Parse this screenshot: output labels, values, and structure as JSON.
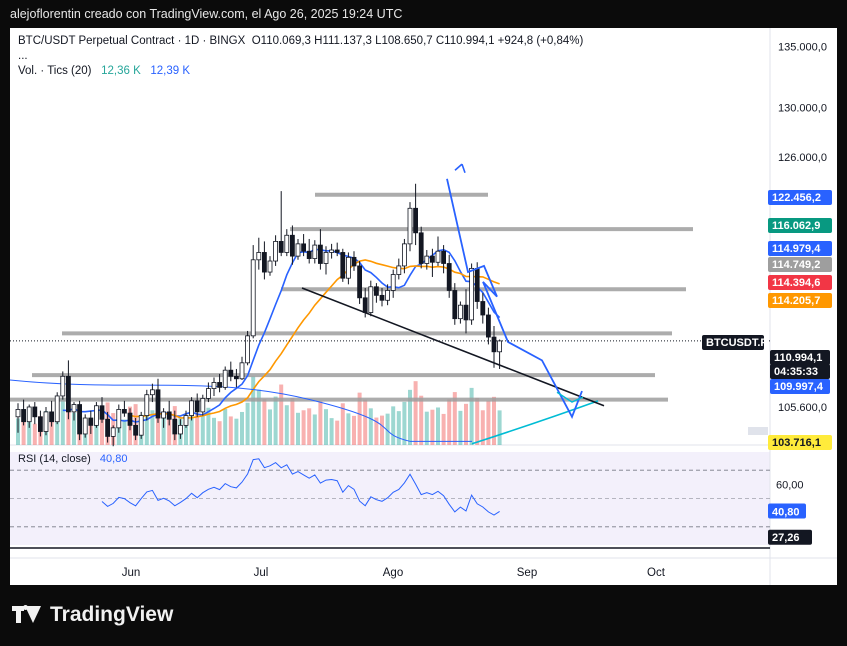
{
  "header": {
    "attribution": "alejoflorentin creado con TradingView.com, el Ago 26, 2025 19:24 UTC"
  },
  "legend": {
    "symbol": "BTC/USDT Perpetual Contract · 1D · BINGX",
    "ohlc": "O110.069,3  H111.137,3  L108.650,7  C110.994,1  +924,8 (+0,84%)",
    "more": "...",
    "vol_prefix": "Vol. · Tics (20)",
    "vol_1": "12,36 K",
    "vol_2": "12,39 K"
  },
  "rsi_legend": {
    "prefix": "RSI (14, close)",
    "value": "40,80"
  },
  "brand": {
    "name": "TradingView"
  },
  "colors": {
    "up": "#26a69a",
    "down": "#ef5350",
    "ma_fast": "#2962ff",
    "ma_slow": "#ff9800",
    "ma_long": "#00bcd4",
    "rsi": "#2962ff",
    "levels": "#9e9e9e"
  },
  "chart_data": {
    "type": "candlestick",
    "x_tick_labels": [
      "Jun",
      "Jul",
      "Ago",
      "Sep",
      "Oct"
    ],
    "y_tick_labels": [
      "135.000,0",
      "130.000,0",
      "126.000,0",
      "105.600,0"
    ],
    "price_badges": [
      {
        "text": "122.456,2",
        "color": "#2962ff",
        "fg": "#ffffff"
      },
      {
        "text": "116.062,9",
        "color": "#089981",
        "fg": "#ffffff"
      },
      {
        "text": "114.979,4",
        "color": "#2962ff",
        "fg": "#ffffff"
      },
      {
        "text": "114.749,2",
        "color": "#9e9e9e",
        "fg": "#ffffff"
      },
      {
        "text": "114.394,6",
        "color": "#f23645",
        "fg": "#ffffff"
      },
      {
        "text": "114.205,7",
        "color": "#ff9800",
        "fg": "#ffffff"
      },
      {
        "text": "BTCUSDT.P",
        "color": "#131722",
        "fg": "#ffffff"
      },
      {
        "text": "110.994,1",
        "color": "#131722",
        "fg": "#ffffff"
      },
      {
        "text": "04:35:33",
        "color": "#131722",
        "fg": "#ffffff"
      },
      {
        "text": "109.997,4",
        "color": "#2962ff",
        "fg": "#ffffff"
      },
      {
        "text": "103.716,1",
        "color": "#ffeb3b",
        "fg": "#131722"
      }
    ],
    "rsi": {
      "current": "40,80",
      "y_tick_labels": [
        "60,00",
        "27,26"
      ],
      "current_badge_color": "#2962ff"
    },
    "candles": [
      [
        104800,
        105900,
        103500,
        105400
      ],
      [
        105400,
        106200,
        104100,
        104400
      ],
      [
        104400,
        105800,
        103900,
        105600
      ],
      [
        105600,
        106000,
        104200,
        104800
      ],
      [
        104800,
        105300,
        103200,
        103600
      ],
      [
        103600,
        105600,
        103300,
        105200
      ],
      [
        105200,
        106100,
        104000,
        104400
      ],
      [
        104400,
        106800,
        104200,
        106500
      ],
      [
        106500,
        108500,
        106200,
        108100
      ],
      [
        108100,
        109400,
        104600,
        105200
      ],
      [
        105200,
        106000,
        104500,
        105800
      ],
      [
        105800,
        106100,
        102900,
        103400
      ],
      [
        103400,
        105000,
        103100,
        104700
      ],
      [
        104700,
        105300,
        103400,
        104100
      ],
      [
        104100,
        106000,
        103900,
        105700
      ],
      [
        105700,
        106400,
        104300,
        104600
      ],
      [
        104600,
        105200,
        102700,
        103200
      ],
      [
        103200,
        104100,
        102400,
        103900
      ],
      [
        103900,
        105800,
        103500,
        105400
      ],
      [
        105400,
        106100,
        104800,
        105100
      ],
      [
        105100,
        105500,
        103700,
        104100
      ],
      [
        104100,
        104700,
        102900,
        103300
      ],
      [
        103300,
        105200,
        103000,
        104900
      ],
      [
        104900,
        107000,
        104500,
        106600
      ],
      [
        106600,
        107500,
        106000,
        107000
      ],
      [
        107000,
        107900,
        104300,
        104700
      ],
      [
        104700,
        105500,
        103900,
        105200
      ],
      [
        105200,
        106100,
        104100,
        104600
      ],
      [
        104600,
        105300,
        102900,
        103400
      ],
      [
        103400,
        104600,
        103000,
        104100
      ],
      [
        104100,
        105300,
        103900,
        104900
      ],
      [
        104900,
        106400,
        104500,
        106100
      ],
      [
        106100,
        106700,
        104800,
        105200
      ],
      [
        105200,
        106600,
        104900,
        106300
      ],
      [
        106300,
        107600,
        106000,
        107100
      ],
      [
        107100,
        108000,
        106500,
        107600
      ],
      [
        107600,
        108300,
        106800,
        107200
      ],
      [
        107200,
        108900,
        107000,
        108600
      ],
      [
        108600,
        109300,
        107700,
        108100
      ],
      [
        108100,
        108700,
        107200,
        107900
      ],
      [
        107900,
        109700,
        107800,
        109200
      ],
      [
        109200,
        111800,
        109000,
        111400
      ],
      [
        111400,
        118800,
        111200,
        117600
      ],
      [
        117600,
        119400,
        116800,
        118200
      ],
      [
        118200,
        119100,
        116000,
        116600
      ],
      [
        116600,
        117900,
        116300,
        117500
      ],
      [
        117500,
        119600,
        117100,
        119100
      ],
      [
        119100,
        123200,
        117900,
        118200
      ],
      [
        118200,
        120100,
        117900,
        119600
      ],
      [
        119600,
        120400,
        117200,
        117900
      ],
      [
        117900,
        119300,
        117600,
        118900
      ],
      [
        118900,
        119700,
        117900,
        118300
      ],
      [
        118300,
        119300,
        117300,
        117700
      ],
      [
        117700,
        119200,
        117300,
        118800
      ],
      [
        118800,
        120100,
        116800,
        117300
      ],
      [
        117300,
        118700,
        116400,
        118200
      ],
      [
        118200,
        118900,
        117700,
        118400
      ],
      [
        118400,
        119000,
        117900,
        118200
      ],
      [
        118200,
        118500,
        115800,
        116100
      ],
      [
        116100,
        118200,
        115600,
        117800
      ],
      [
        117800,
        118300,
        116700,
        117100
      ],
      [
        117100,
        117500,
        114000,
        114500
      ],
      [
        114500,
        115300,
        112900,
        113300
      ],
      [
        113300,
        115900,
        113000,
        115400
      ],
      [
        115400,
        115700,
        114100,
        114700
      ],
      [
        114700,
        115300,
        113800,
        114300
      ],
      [
        114300,
        115600,
        113900,
        115100
      ],
      [
        115100,
        116800,
        114500,
        116400
      ],
      [
        116400,
        117700,
        116000,
        117100
      ],
      [
        117100,
        119300,
        116500,
        118900
      ],
      [
        118900,
        122300,
        118300,
        121800
      ],
      [
        121800,
        123800,
        118800,
        119800
      ],
      [
        119800,
        120300,
        116900,
        117300
      ],
      [
        117300,
        118400,
        116800,
        117900
      ],
      [
        117900,
        118500,
        116200,
        117400
      ],
      [
        117400,
        119500,
        117100,
        118300
      ],
      [
        118300,
        118800,
        116500,
        117300
      ],
      [
        117300,
        118000,
        114500,
        115100
      ],
      [
        115100,
        115700,
        112300,
        112800
      ],
      [
        112800,
        114200,
        112400,
        113900
      ],
      [
        113900,
        115200,
        111600,
        112700
      ],
      [
        112700,
        117300,
        112300,
        116900
      ],
      [
        116900,
        117400,
        113600,
        114200
      ],
      [
        114200,
        114900,
        112400,
        113100
      ],
      [
        113100,
        113700,
        110700,
        111300
      ],
      [
        111300,
        112200,
        108800,
        110100
      ],
      [
        110100,
        111100,
        108700,
        110990
      ]
    ],
    "volumes": [
      [
        9.5,
        0
      ],
      [
        11.2,
        1
      ],
      [
        8.4,
        0
      ],
      [
        7.6,
        1
      ],
      [
        10.3,
        1
      ],
      [
        12.1,
        0
      ],
      [
        9.8,
        1
      ],
      [
        13.4,
        0
      ],
      [
        16.8,
        0
      ],
      [
        18.2,
        1
      ],
      [
        11.5,
        0
      ],
      [
        14.1,
        1
      ],
      [
        9.3,
        0
      ],
      [
        8.9,
        1
      ],
      [
        10.6,
        0
      ],
      [
        12.8,
        1
      ],
      [
        15.2,
        1
      ],
      [
        11.4,
        1
      ],
      [
        12.3,
        0
      ],
      [
        9.1,
        0
      ],
      [
        13.7,
        1
      ],
      [
        14.6,
        1
      ],
      [
        10.8,
        0
      ],
      [
        17.9,
        0
      ],
      [
        12.4,
        0
      ],
      [
        19.6,
        1
      ],
      [
        11.3,
        0
      ],
      [
        10.1,
        1
      ],
      [
        13.9,
        1
      ],
      [
        9.8,
        0
      ],
      [
        8.7,
        0
      ],
      [
        12.6,
        0
      ],
      [
        11.1,
        1
      ],
      [
        10.4,
        0
      ],
      [
        13.3,
        0
      ],
      [
        9.7,
        0
      ],
      [
        8.5,
        1
      ],
      [
        12.9,
        0
      ],
      [
        10.2,
        1
      ],
      [
        9.4,
        0
      ],
      [
        11.8,
        0
      ],
      [
        15.1,
        0
      ],
      [
        24.5,
        0
      ],
      [
        19.8,
        0
      ],
      [
        16.4,
        1
      ],
      [
        12.7,
        0
      ],
      [
        17.3,
        0
      ],
      [
        21.6,
        1
      ],
      [
        14.2,
        0
      ],
      [
        16.8,
        1
      ],
      [
        11.5,
        0
      ],
      [
        12.4,
        1
      ],
      [
        13.1,
        1
      ],
      [
        10.9,
        0
      ],
      [
        15.6,
        1
      ],
      [
        12.8,
        0
      ],
      [
        9.6,
        0
      ],
      [
        8.7,
        1
      ],
      [
        14.9,
        1
      ],
      [
        11.3,
        0
      ],
      [
        10.4,
        1
      ],
      [
        18.7,
        1
      ],
      [
        16.2,
        1
      ],
      [
        13.1,
        0
      ],
      [
        9.8,
        1
      ],
      [
        10.5,
        1
      ],
      [
        11.2,
        0
      ],
      [
        13.8,
        0
      ],
      [
        12.1,
        0
      ],
      [
        15.4,
        0
      ],
      [
        19.7,
        0
      ],
      [
        22.8,
        1
      ],
      [
        17.6,
        1
      ],
      [
        11.9,
        0
      ],
      [
        12.6,
        1
      ],
      [
        13.4,
        0
      ],
      [
        11.1,
        1
      ],
      [
        16.3,
        1
      ],
      [
        18.9,
        1
      ],
      [
        12.2,
        0
      ],
      [
        14.7,
        1
      ],
      [
        20.4,
        0
      ],
      [
        16.8,
        1
      ],
      [
        12.4,
        1
      ],
      [
        15.8,
        1
      ],
      [
        17.2,
        1
      ],
      [
        12.36,
        0
      ]
    ]
  }
}
